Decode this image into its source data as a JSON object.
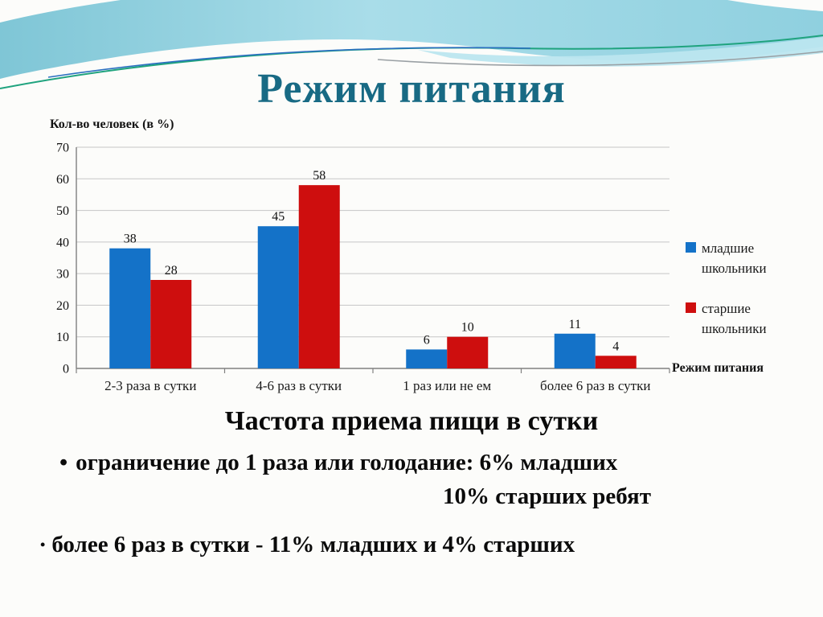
{
  "slide": {
    "title": "Режим питания",
    "caption": "Частота приема пищи в сутки",
    "bullets": [
      {
        "marker": "•",
        "line1": "ограничение до 1 раза или голодание: 6% младших",
        "line2": "10% старших ребят"
      },
      {
        "marker": "•",
        "line1": "более 6 раз в сутки - 11% младших  и  4% старших",
        "line2": ""
      }
    ]
  },
  "chart_data": {
    "type": "bar",
    "title": "",
    "ylabel": "Кол-во человек (в %)",
    "xlabel": "Режим питания",
    "categories": [
      "2-3 раза в сутки",
      "4-6 раз в сутки",
      "1 раз или не ем",
      "более 6 раз в сутки"
    ],
    "series": [
      {
        "name": "младшие школьники",
        "color": "#1472C8",
        "values": [
          38,
          45,
          6,
          11
        ]
      },
      {
        "name": "старшие школьники",
        "color": "#CE0E0E",
        "values": [
          28,
          58,
          10,
          4
        ]
      }
    ],
    "ylim": [
      0,
      70
    ],
    "ytick_step": 10,
    "grid": true,
    "legend_position": "right"
  },
  "colors": {
    "title_teal": "#186A84",
    "bar_blue": "#1472C8",
    "bar_red": "#CE0E0E",
    "gridline": "#C6C6C6",
    "axis": "#808080",
    "header_cyan": "#8ACBDA"
  }
}
